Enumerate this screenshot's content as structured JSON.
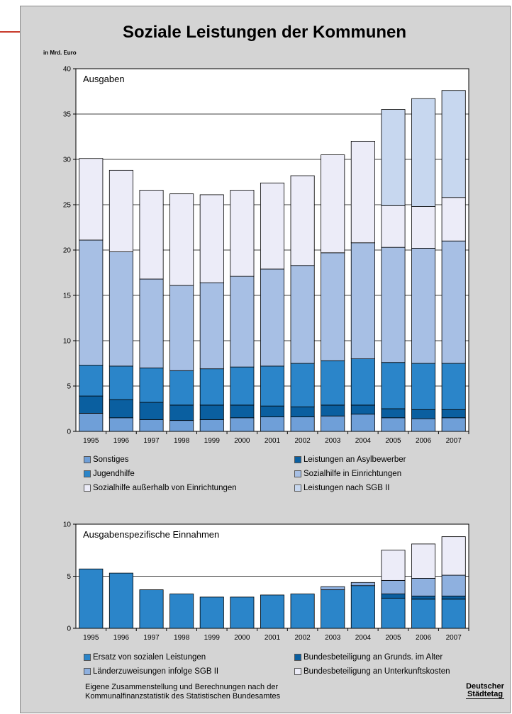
{
  "title": "Soziale Leistungen der Kommunen",
  "unit_label": "in Mrd. Euro",
  "footnote_line1": "Eigene Zusammenstellung und Berechnungen nach der",
  "footnote_line2": "Kommunalfinanzstatistik des Statistischen Bundesamtes",
  "logo_line1": "Deutscher",
  "logo_line2": "Städtetag",
  "accent_color": "#c83a2b",
  "chart_data": [
    {
      "type": "bar",
      "stacked": true,
      "label": "Ausgaben",
      "categories": [
        "1995",
        "1996",
        "1997",
        "1998",
        "1999",
        "2000",
        "2001",
        "2002",
        "2003",
        "2004",
        "2005",
        "2006",
        "2007"
      ],
      "ylim": [
        0,
        40
      ],
      "yticks": [
        0,
        5,
        10,
        15,
        20,
        25,
        30,
        35,
        40
      ],
      "grid": true,
      "legend_position": "bottom",
      "series": [
        {
          "name": "Sonstiges",
          "color": "#6f9fd8",
          "values": [
            2.0,
            1.5,
            1.3,
            1.2,
            1.3,
            1.5,
            1.6,
            1.6,
            1.7,
            1.9,
            1.5,
            1.4,
            1.5
          ]
        },
        {
          "name": "Leistungen an Asylbewerber",
          "color": "#0a5fa0",
          "values": [
            1.9,
            2.0,
            1.9,
            1.7,
            1.6,
            1.4,
            1.2,
            1.1,
            1.2,
            1.0,
            1.0,
            1.0,
            0.9
          ]
        },
        {
          "name": "Jugendhilfe",
          "color": "#2b85c9",
          "values": [
            3.4,
            3.7,
            3.8,
            3.8,
            4.0,
            4.2,
            4.4,
            4.8,
            4.9,
            5.1,
            5.1,
            5.1,
            5.1
          ]
        },
        {
          "name": "Sozialhilfe in Einrichtungen",
          "color": "#a7bfe4",
          "values": [
            13.8,
            12.6,
            9.8,
            9.4,
            9.5,
            10.0,
            10.7,
            10.8,
            11.9,
            12.8,
            12.7,
            12.7,
            13.5
          ]
        },
        {
          "name": "Sozialhilfe außerhalb von Einrichtungen",
          "color": "#ececf8",
          "values": [
            9.0,
            9.0,
            9.8,
            10.1,
            9.7,
            9.5,
            9.5,
            9.9,
            10.8,
            11.2,
            4.6,
            4.6,
            4.8
          ]
        },
        {
          "name": "Leistungen nach SGB II",
          "color": "#c7d7ef",
          "values": [
            0,
            0,
            0,
            0,
            0,
            0,
            0,
            0,
            0,
            0,
            10.6,
            11.9,
            11.8
          ]
        }
      ]
    },
    {
      "type": "bar",
      "stacked": true,
      "label": "Ausgabenspezifische Einnahmen",
      "categories": [
        "1995",
        "1996",
        "1997",
        "1998",
        "1999",
        "2000",
        "2001",
        "2002",
        "2003",
        "2004",
        "2005",
        "2006",
        "2007"
      ],
      "ylim": [
        0,
        10
      ],
      "yticks": [
        0,
        5,
        10
      ],
      "grid": true,
      "legend_position": "bottom",
      "series": [
        {
          "name": "Ersatz von sozialen Leistungen",
          "color": "#2b85c9",
          "values": [
            5.7,
            5.3,
            3.7,
            3.3,
            3.0,
            3.0,
            3.2,
            3.3,
            3.7,
            4.1,
            2.9,
            2.8,
            2.8
          ]
        },
        {
          "name": "Bundesbeteiligung an Grunds. im Alter",
          "color": "#0a5fa0",
          "values": [
            0,
            0,
            0,
            0,
            0,
            0,
            0,
            0,
            0,
            0,
            0.4,
            0.3,
            0.3
          ]
        },
        {
          "name": "Länderzuweisungen infolge SGB II",
          "color": "#8eb0df",
          "values": [
            0,
            0,
            0,
            0,
            0,
            0,
            0,
            0,
            0.3,
            0.3,
            1.3,
            1.7,
            2.0
          ]
        },
        {
          "name": "Bundesbeteiligung an Unterkunftskosten",
          "color": "#ececf8",
          "values": [
            0,
            0,
            0,
            0,
            0,
            0,
            0,
            0,
            0,
            0,
            2.9,
            3.3,
            3.7
          ]
        }
      ]
    }
  ],
  "legend_top": [
    {
      "name": "Sonstiges",
      "color": "#6f9fd8"
    },
    {
      "name": "Leistungen an Asylbewerber",
      "color": "#0a5fa0"
    },
    {
      "name": "Jugendhilfe",
      "color": "#2b85c9"
    },
    {
      "name": "Sozialhilfe in Einrichtungen",
      "color": "#a7bfe4"
    },
    {
      "name": "Sozialhilfe außerhalb von Einrichtungen",
      "color": "#ececf8"
    },
    {
      "name": "Leistungen nach SGB II",
      "color": "#c7d7ef"
    }
  ],
  "legend_bottom": [
    {
      "name": "Ersatz von sozialen Leistungen",
      "color": "#2b85c9"
    },
    {
      "name": "Bundesbeteiligung an Grunds. im Alter",
      "color": "#0a5fa0"
    },
    {
      "name": "Länderzuweisungen infolge SGB II",
      "color": "#8eb0df"
    },
    {
      "name": "Bundesbeteiligung an Unterkunftskosten",
      "color": "#ececf8"
    }
  ]
}
